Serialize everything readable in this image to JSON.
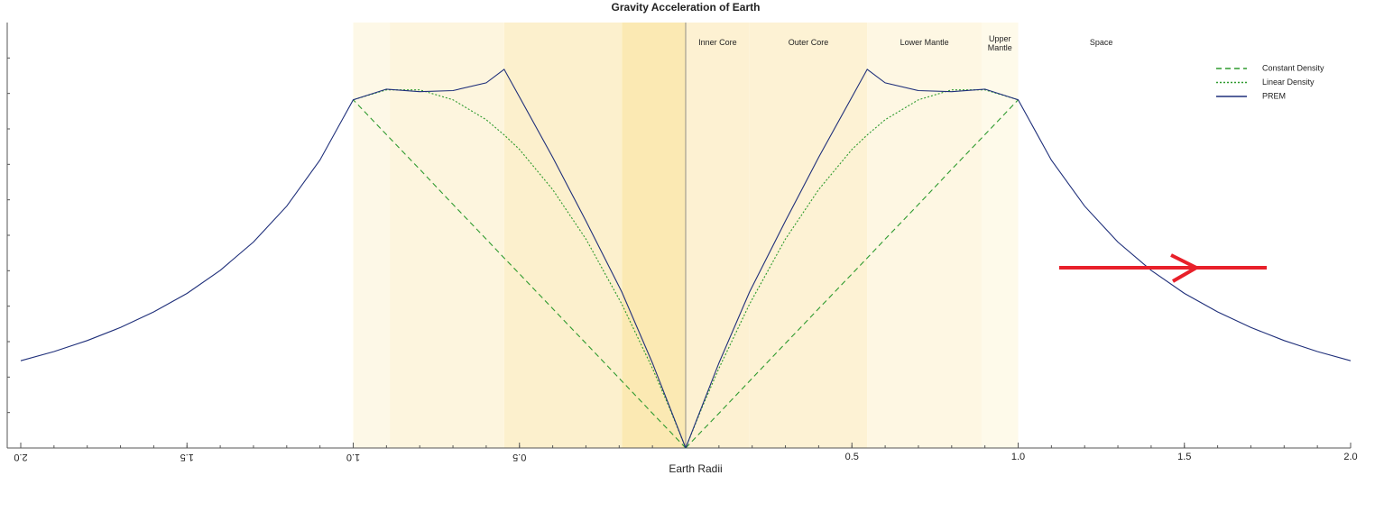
{
  "chart_data": {
    "type": "line",
    "title": "Gravity Acceleration of Earth",
    "xlabel": "Earth Radii",
    "x": [
      0,
      0.05,
      0.1,
      0.192,
      0.3,
      0.4,
      0.5,
      0.546,
      0.6,
      0.7,
      0.8,
      0.9,
      1.0,
      1.1,
      1.2,
      1.3,
      1.4,
      1.5,
      1.6,
      1.7,
      1.8,
      1.9,
      2.0
    ],
    "series": [
      {
        "name": "Constant Density",
        "color": "#2e9a2e",
        "style": "dashed",
        "values": [
          0,
          0.49,
          0.98,
          1.89,
          2.95,
          3.93,
          4.91,
          5.36,
          5.89,
          6.87,
          7.86,
          8.84,
          9.82,
          null,
          null,
          null,
          null,
          null,
          null,
          null,
          null,
          null,
          null
        ]
      },
      {
        "name": "Linear Density",
        "color": "#2e9a2e",
        "style": "dotted",
        "values": [
          0,
          1.16,
          2.25,
          4.06,
          5.89,
          7.29,
          8.42,
          8.83,
          9.26,
          9.82,
          10.1,
          10.1,
          9.82,
          null,
          null,
          null,
          null,
          null,
          null,
          null,
          null,
          null,
          null
        ]
      },
      {
        "name": "PREM",
        "color": "#1f2f7a",
        "style": "solid",
        "values": [
          0,
          1.2,
          2.4,
          4.4,
          6.4,
          8.2,
          9.9,
          10.68,
          10.3,
          10.08,
          10.05,
          10.12,
          9.82,
          8.12,
          6.82,
          5.81,
          5.01,
          4.36,
          3.84,
          3.4,
          3.03,
          2.72,
          2.46
        ]
      }
    ],
    "layers": [
      {
        "label": "Inner Core",
        "from": 0,
        "to": 0.192,
        "color": "#fdf1d2",
        "mirror_color": "#fbe9b3"
      },
      {
        "label": "Outer Core",
        "from": 0.192,
        "to": 0.546,
        "color": "#fdf2d4",
        "mirror_color": "#fcf0cd"
      },
      {
        "label": "Lower Mantle",
        "from": 0.546,
        "to": 0.89,
        "color": "#fef7e3",
        "mirror_color": "#fdf5de"
      },
      {
        "label": "Upper Mantle",
        "from": 0.89,
        "to": 1.0,
        "color": "#fefaea",
        "mirror_color": "#fdf8e7"
      },
      {
        "label": "Space",
        "from": 1.0,
        "to": 2.0,
        "color": "#ffffff",
        "mirror_color": "#ffffff"
      }
    ],
    "xlim": [
      0,
      2
    ],
    "xticks": [
      {
        "value": 0.5,
        "label": "0.5"
      },
      {
        "value": 1.0,
        "label": "1.0"
      },
      {
        "value": 1.5,
        "label": "1.5"
      },
      {
        "value": 2.0,
        "label": "2.0"
      }
    ],
    "ylim": [
      0,
      12
    ],
    "mirrored": true,
    "legend": "upper right"
  }
}
